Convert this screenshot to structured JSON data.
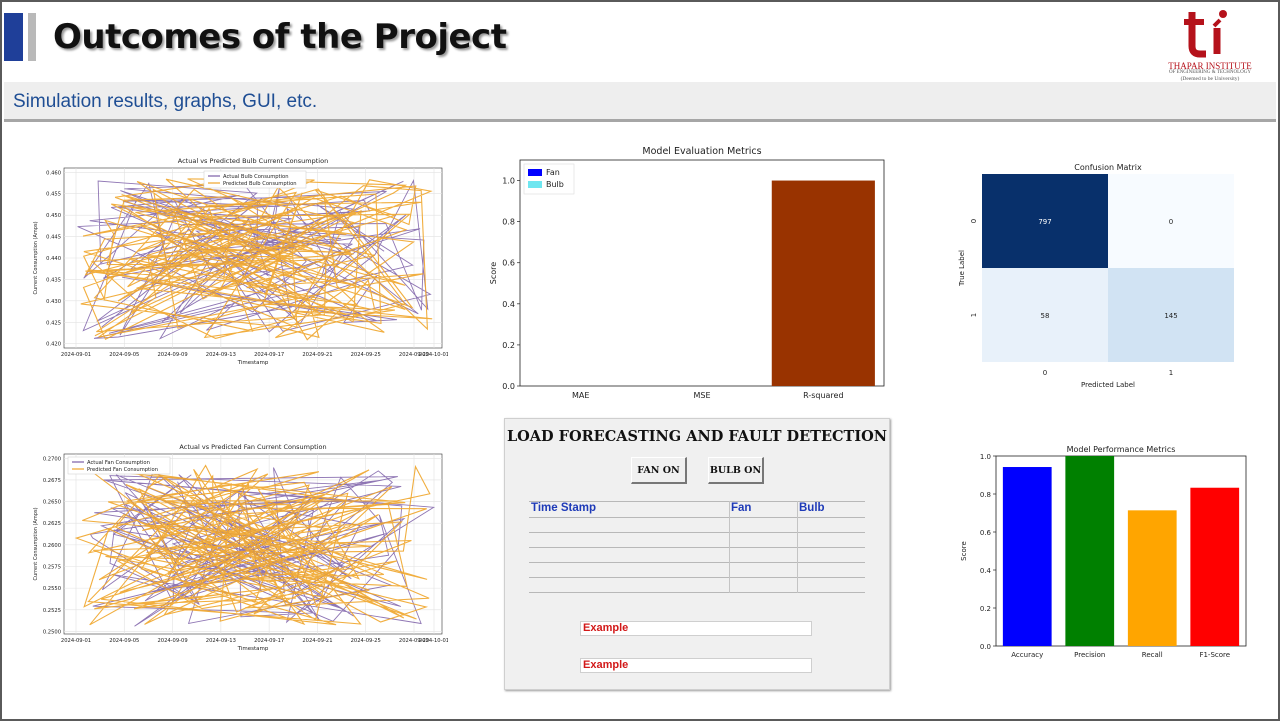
{
  "slide": {
    "title": "Outcomes of the Project",
    "subtitle": "Simulation results, graphs, GUI, etc.",
    "logo": {
      "mark": "ti",
      "name": "THAPAR INSTITUTE",
      "sub": "OF ENGINEERING & TECHNOLOGY",
      "sub2": "(Deemed to be University)",
      "color": "#b5121b"
    }
  },
  "colors": {
    "blue_bar": "#1f3f99",
    "subtitle": "#1f4e94",
    "actual_line": "#7b5ea7",
    "predicted_line": "#f0a52a"
  },
  "chart_data": [
    {
      "type": "line",
      "title": "Actual vs Predicted Bulb Current Consumption",
      "xlabel": "Timestamp",
      "ylabel": "Current Consumption (Amps)",
      "x_ticks": [
        "2024-09-01",
        "2024-09-05",
        "2024-09-09",
        "2024-09-13",
        "2024-09-17",
        "2024-09-21",
        "2024-09-25",
        "2024-09-29",
        "2024-10-01"
      ],
      "y_ticks": [
        "0.460",
        "0.455",
        "0.450",
        "0.445",
        "0.440",
        "0.435",
        "0.430",
        "0.425",
        "0.420"
      ],
      "ylim": [
        0.419,
        0.461
      ],
      "legend": [
        "Actual Bulb Consumption",
        "Predicted Bulb Consumption"
      ],
      "legend_position": "top-center",
      "grid": true,
      "note": "dense random-ordered series, values span 0.420-0.460"
    },
    {
      "type": "bar",
      "title": "Model Evaluation Metrics",
      "categories": [
        "MAE",
        "MSE",
        "R-squared"
      ],
      "series": [
        {
          "name": "Fan",
          "color": "#0000ff",
          "values": [
            0.0,
            0.0,
            1.0
          ]
        },
        {
          "name": "Bulb",
          "color": "#6ee6f0",
          "values": [
            0.0,
            0.0,
            1.0
          ]
        }
      ],
      "bar_color_shown": "#993300",
      "y_ticks": [
        "0.0",
        "0.2",
        "0.4",
        "0.6",
        "0.8",
        "1.0"
      ],
      "ylabel": "Score",
      "ylim": [
        0,
        1.1
      ],
      "legend_position": "top-left"
    },
    {
      "type": "heatmap",
      "title": "Confusion Matrix",
      "xlabel": "Predicted Label",
      "ylabel": "True Label",
      "x_ticks": [
        "0",
        "1"
      ],
      "y_ticks": [
        "0",
        "1"
      ],
      "values": [
        [
          797,
          0
        ],
        [
          58,
          145
        ]
      ],
      "cell_colors": [
        [
          "#08306b",
          "#f7fbff"
        ],
        [
          "#e8f1fa",
          "#d1e3f3"
        ]
      ]
    },
    {
      "type": "line",
      "title": "Actual vs Predicted Fan Current Consumption",
      "xlabel": "Timestamp",
      "ylabel": "Current Consumption (Amps)",
      "x_ticks": [
        "2024-09-01",
        "2024-09-05",
        "2024-09-09",
        "2024-09-13",
        "2024-09-17",
        "2024-09-21",
        "2024-09-25",
        "2024-09-29",
        "2024-10-01"
      ],
      "y_ticks": [
        "0.2700",
        "0.2675",
        "0.2650",
        "0.2625",
        "0.2600",
        "0.2575",
        "0.2550",
        "0.2525",
        "0.2500"
      ],
      "ylim": [
        0.2497,
        0.2705
      ],
      "legend": [
        "Actual Fan Consumption",
        "Predicted Fan Consumption"
      ],
      "legend_position": "top-left",
      "grid": true,
      "note": "dense random-ordered series, values span 0.2500-0.2700"
    },
    {
      "type": "bar",
      "title": "Model Performance Metrics",
      "categories": [
        "Accuracy",
        "Precision",
        "Recall",
        "F1-Score"
      ],
      "values": [
        0.942,
        1.0,
        0.714,
        0.833
      ],
      "colors": [
        "#0000ff",
        "#008000",
        "#ffa500",
        "#ff0000"
      ],
      "y_ticks": [
        "0.0",
        "0.2",
        "0.4",
        "0.6",
        "0.8",
        "1.0"
      ],
      "ylabel": "Score",
      "ylim": [
        0,
        1.0
      ]
    }
  ],
  "gui": {
    "title": "LOAD FORECASTING AND FAULT DETECTION",
    "fan_on_label": "FAN ON",
    "bulb_on_label": "BULB ON",
    "table_headers": [
      "Time Stamp",
      "Fan",
      "Bulb"
    ],
    "example_1": "Example",
    "example_2": "Example"
  }
}
